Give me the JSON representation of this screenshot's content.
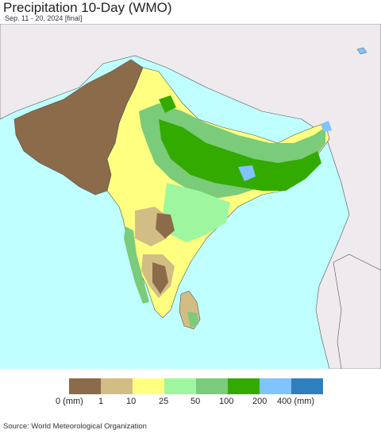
{
  "title": "Precipitation 10-Day (WMO)",
  "subtitle": "Sep. 11 - 20, 2024 [final]",
  "source": "Source: World Meteorological Organization",
  "legend": {
    "colors": [
      "#8B6B4A",
      "#D2BD84",
      "#FFFF80",
      "#9EF79E",
      "#7ACB7A",
      "#33AA00",
      "#7FC3FF",
      "#2F7FBF"
    ],
    "labels": [
      "0 (mm)",
      "1",
      "10",
      "25",
      "50",
      "100",
      "200",
      "400 (mm)"
    ]
  },
  "colors": {
    "ocean": "#BFFFFF",
    "land_outside": "#EEEAEE",
    "border": "#333333"
  }
}
